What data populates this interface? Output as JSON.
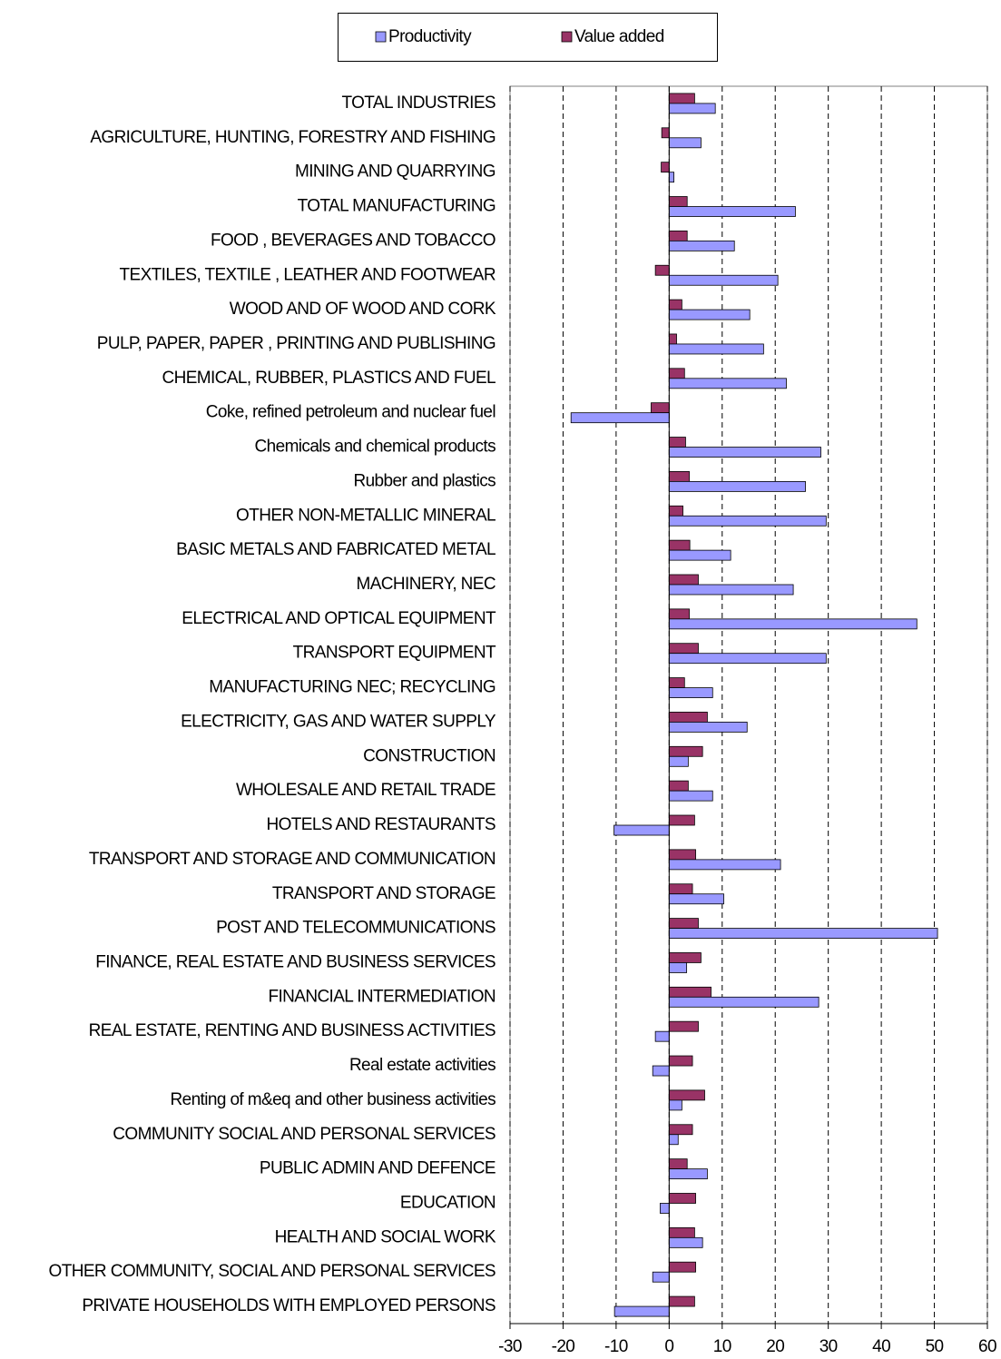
{
  "chart_data": {
    "type": "bar",
    "orientation": "horizontal",
    "categories": [
      "TOTAL INDUSTRIES",
      "AGRICULTURE, HUNTING, FORESTRY AND FISHING",
      "MINING AND QUARRYING",
      "TOTAL MANUFACTURING",
      "FOOD , BEVERAGES AND TOBACCO",
      "TEXTILES, TEXTILE , LEATHER AND FOOTWEAR",
      "WOOD AND OF WOOD AND CORK",
      "PULP, PAPER, PAPER , PRINTING AND PUBLISHING",
      "CHEMICAL, RUBBER, PLASTICS AND FUEL",
      "Coke, refined petroleum and nuclear fuel",
      "Chemicals and chemical products",
      "Rubber and plastics",
      "OTHER NON-METALLIC MINERAL",
      "BASIC METALS AND FABRICATED METAL",
      "MACHINERY, NEC",
      "ELECTRICAL AND OPTICAL EQUIPMENT",
      "TRANSPORT EQUIPMENT",
      "MANUFACTURING NEC; RECYCLING",
      "ELECTRICITY, GAS AND WATER SUPPLY",
      "CONSTRUCTION",
      "WHOLESALE AND RETAIL TRADE",
      "HOTELS AND RESTAURANTS",
      "TRANSPORT AND STORAGE AND COMMUNICATION",
      "TRANSPORT AND STORAGE",
      "POST AND TELECOMMUNICATIONS",
      "FINANCE, REAL ESTATE AND BUSINESS SERVICES",
      "FINANCIAL INTERMEDIATION",
      "REAL ESTATE, RENTING AND BUSINESS ACTIVITIES",
      "Real estate activities",
      "Renting of m&eq and other business activities",
      "COMMUNITY SOCIAL AND PERSONAL SERVICES",
      "PUBLIC ADMIN AND DEFENCE",
      "EDUCATION",
      "HEALTH AND SOCIAL WORK",
      "OTHER COMMUNITY, SOCIAL AND PERSONAL SERVICES",
      "PRIVATE HOUSEHOLDS WITH EMPLOYED PERSONS"
    ],
    "series": [
      {
        "name": "Productivity",
        "color": "#9999ff",
        "values": [
          8.7,
          6.0,
          0.9,
          23.8,
          12.3,
          20.5,
          15.2,
          17.8,
          22.1,
          -18.5,
          28.6,
          25.7,
          29.6,
          11.6,
          23.4,
          46.7,
          29.6,
          8.2,
          14.7,
          3.6,
          8.2,
          -10.4,
          21.0,
          10.3,
          50.6,
          3.3,
          28.2,
          -2.6,
          -3.1,
          2.4,
          1.7,
          7.2,
          -1.7,
          6.3,
          -3.1,
          -10.3
        ]
      },
      {
        "name": "Value added",
        "color": "#993366",
        "values": [
          4.8,
          -1.4,
          -1.5,
          3.4,
          3.4,
          -2.6,
          2.4,
          1.4,
          2.9,
          -3.4,
          3.1,
          3.8,
          2.6,
          3.9,
          5.5,
          3.8,
          5.5,
          2.9,
          7.2,
          6.3,
          3.6,
          4.8,
          5.0,
          4.4,
          5.5,
          6.0,
          7.9,
          5.5,
          4.4,
          6.7,
          4.4,
          3.4,
          5.0,
          4.8,
          5.0,
          4.8
        ]
      }
    ],
    "xlim": [
      -30,
      60
    ],
    "xticks": [
      -30,
      -20,
      -10,
      0,
      10,
      20,
      30,
      40,
      50,
      60
    ],
    "grid": true,
    "legend": "top"
  }
}
